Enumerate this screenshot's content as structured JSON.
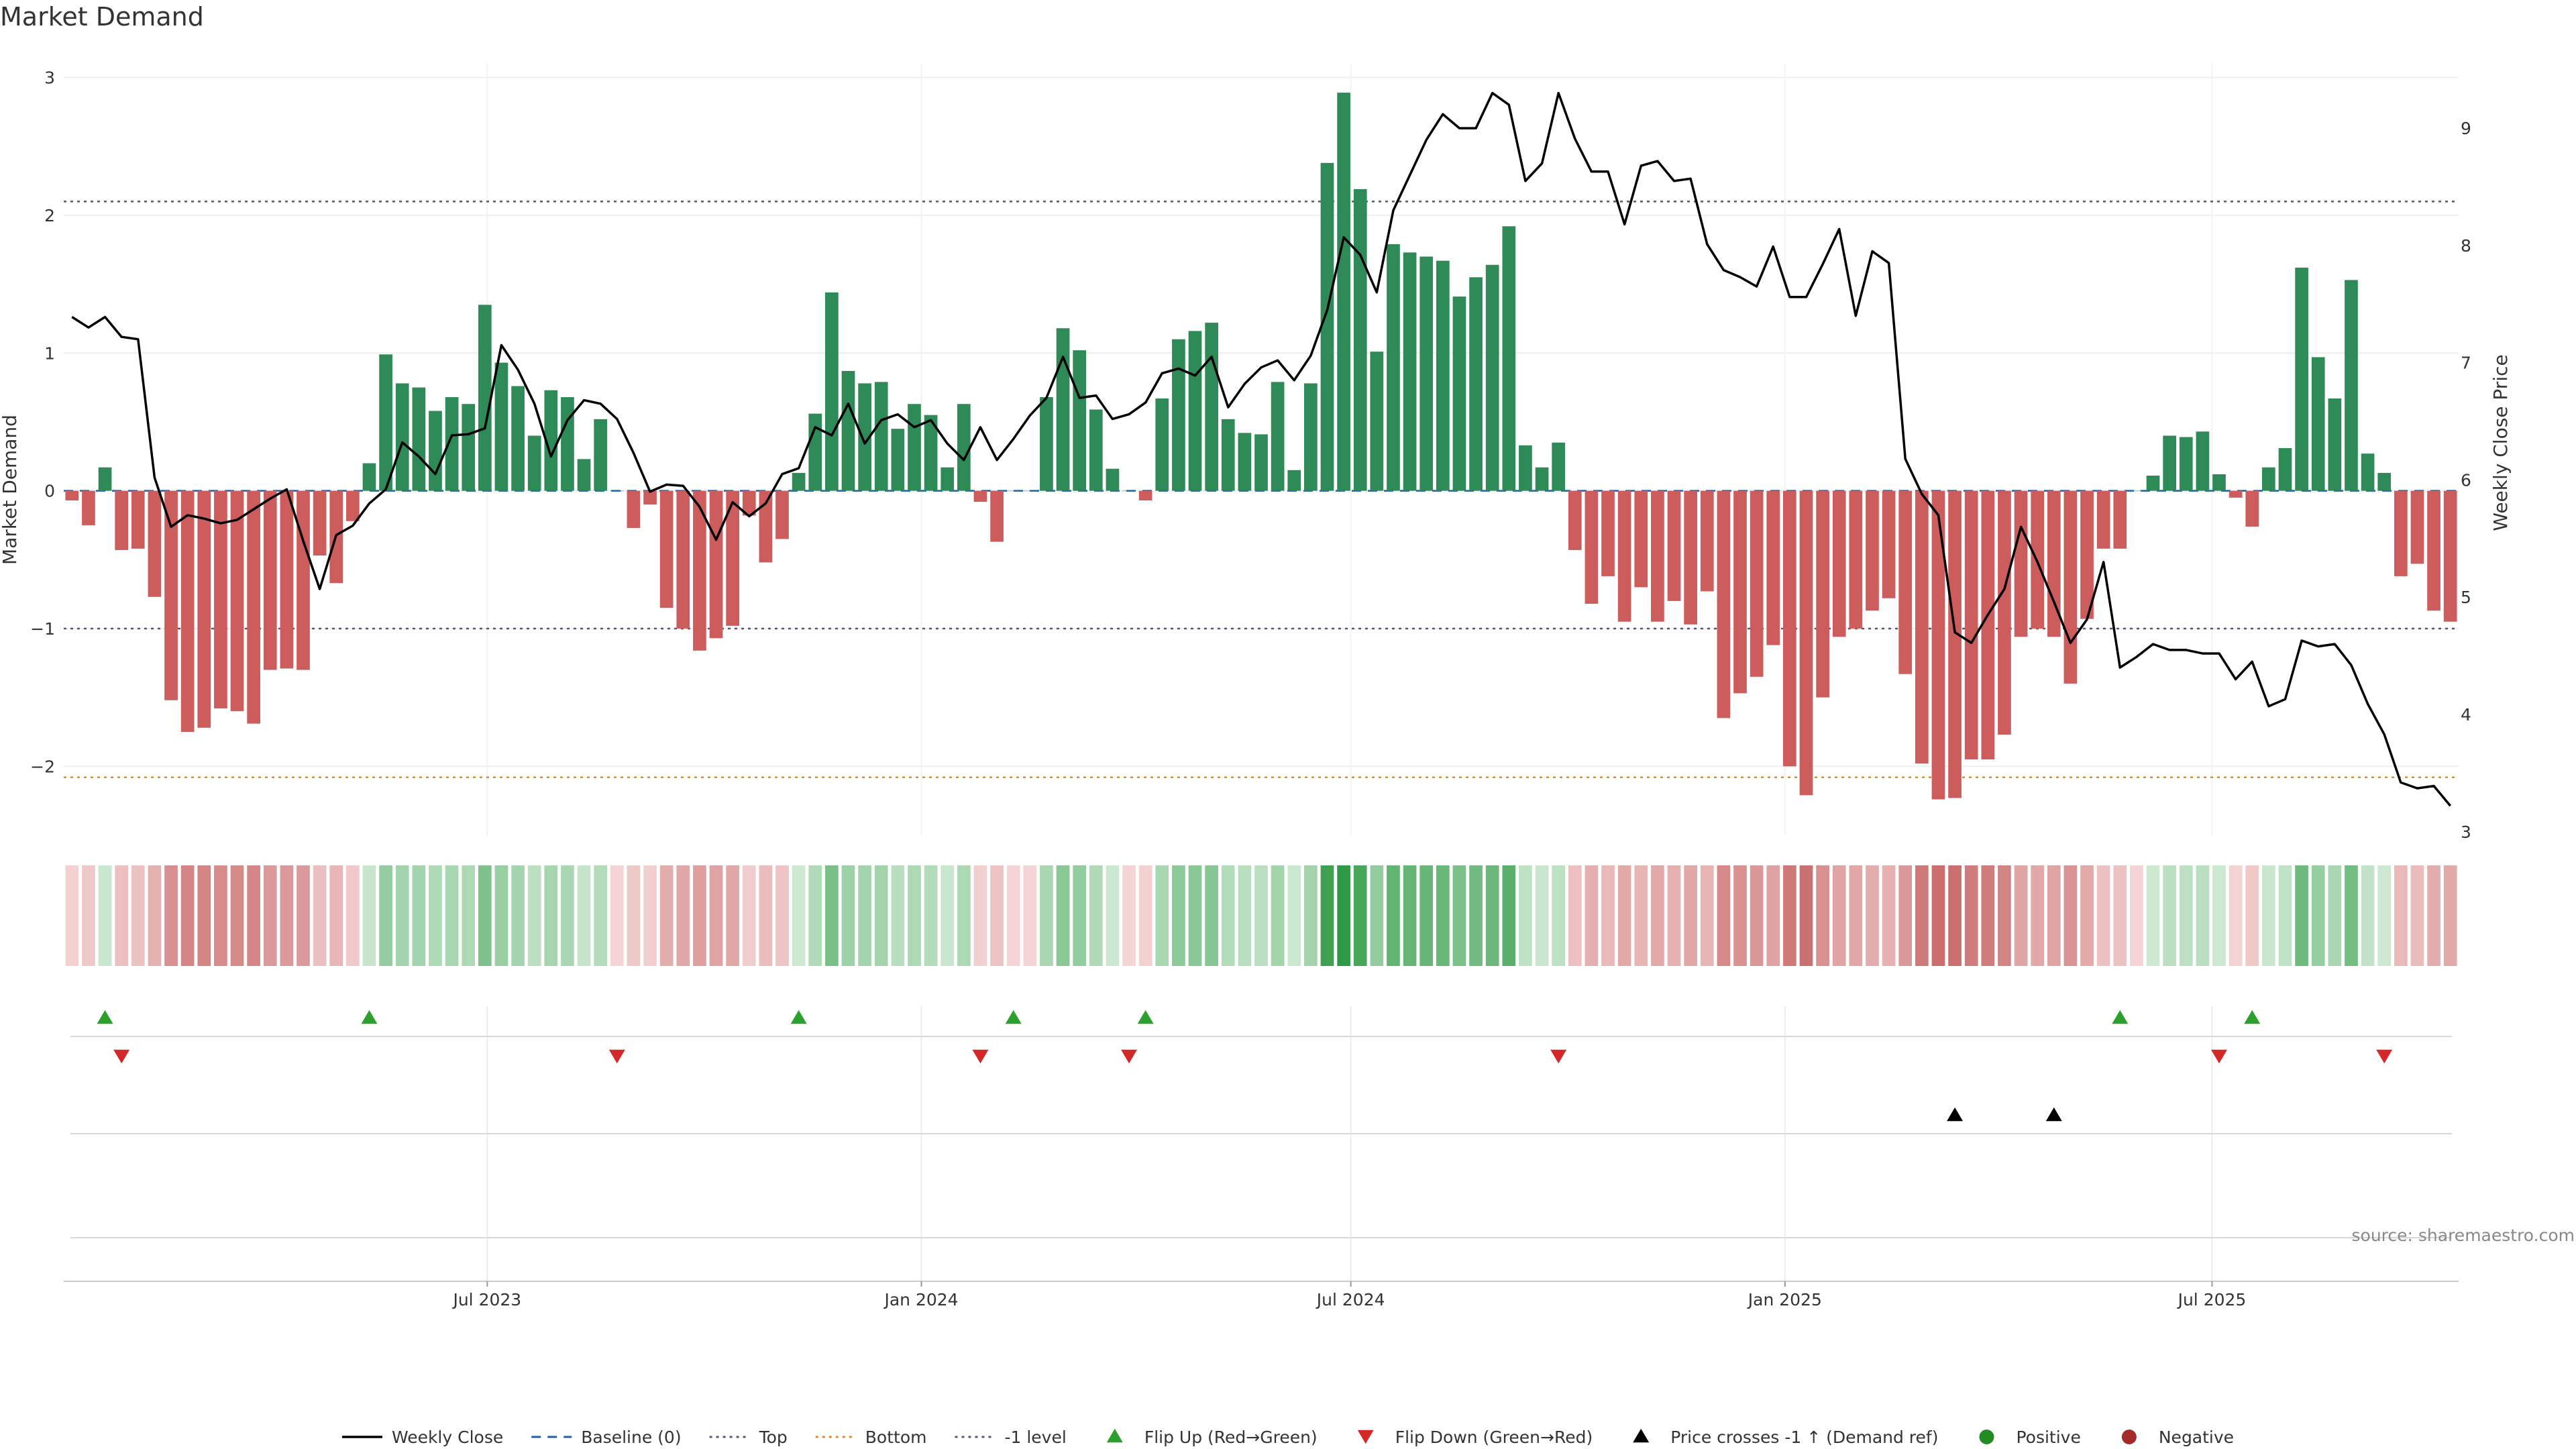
{
  "chart_data": {
    "type": "bar",
    "title": "Market Demand",
    "ylabel": "Market Demand",
    "y2label": "Weekly Close Price",
    "ylim": [
      -2.5,
      3.1
    ],
    "y2lim": [
      2.97,
      9.55
    ],
    "yticks": [
      3,
      2,
      1,
      0,
      -1,
      -2
    ],
    "y2ticks": [
      3,
      4,
      5,
      6,
      7,
      8,
      9
    ],
    "reference_lines": {
      "top": 2.1,
      "bottom": -2.08,
      "minus_one": -1.0,
      "baseline": 0
    },
    "x_start": "2023-01-06",
    "x_end": "2025-10-10",
    "x_ticks": [
      {
        "label": "Jul 2023",
        "date": "2023-07-01"
      },
      {
        "label": "Jan 2024",
        "date": "2024-01-01"
      },
      {
        "label": "Jul 2024",
        "date": "2024-07-01"
      },
      {
        "label": "Jan 2025",
        "date": "2025-01-01"
      },
      {
        "label": "Jul 2025",
        "date": "2025-07-01"
      }
    ],
    "colors": {
      "positive": "#2e8b57",
      "negative": "#cd5c5c",
      "line": "#000000",
      "flip_up": "#2ca02c",
      "flip_down": "#d62728",
      "crosses": "#000000",
      "ref_line": "#555577",
      "bottom_line": "#e08a2c",
      "baseline": "#1f5fa8"
    },
    "series": [
      {
        "name": "Market Demand",
        "values": [
          -0.07,
          -0.25,
          0.17,
          -0.43,
          -0.42,
          -0.77,
          -1.52,
          -1.75,
          -1.72,
          -1.58,
          -1.6,
          -1.69,
          -1.3,
          -1.29,
          -1.3,
          -0.47,
          -0.67,
          -0.22,
          0.2,
          0.99,
          0.78,
          0.75,
          0.58,
          0.68,
          0.63,
          1.35,
          0.93,
          0.76,
          0.4,
          0.73,
          0.68,
          0.23,
          0.52,
          0.0,
          -0.27,
          -0.1,
          -0.85,
          -1.0,
          -1.16,
          -1.07,
          -0.98,
          -0.18,
          -0.52,
          -0.35,
          0.13,
          0.56,
          1.44,
          0.87,
          0.78,
          0.79,
          0.45,
          0.63,
          0.55,
          0.17,
          0.63,
          -0.08,
          -0.37,
          0.0,
          0.0,
          0.68,
          1.18,
          1.02,
          0.59,
          0.16,
          0.0,
          -0.07,
          0.67,
          1.1,
          1.16,
          1.22,
          0.52,
          0.42,
          0.41,
          0.79,
          0.15,
          0.78,
          2.38,
          2.89,
          2.19,
          1.01,
          1.79,
          1.73,
          1.7,
          1.67,
          1.41,
          1.55,
          1.64,
          1.92,
          0.33,
          0.17,
          0.35,
          -0.43,
          -0.82,
          -0.62,
          -0.95,
          -0.7,
          -0.95,
          -0.8,
          -0.97,
          -0.73,
          -1.65,
          -1.47,
          -1.35,
          -1.12,
          -2.0,
          -2.21,
          -1.5,
          -1.06,
          -1.0,
          -0.87,
          -0.78,
          -1.33,
          -1.98,
          -2.24,
          -2.23,
          -1.95,
          -1.95,
          -1.77,
          -1.06,
          -1.0,
          -1.06,
          -1.4,
          -0.93,
          -0.42,
          -0.42,
          0.0,
          0.11,
          0.4,
          0.39,
          0.43,
          0.12,
          -0.05,
          -0.26,
          0.17,
          0.31,
          1.62,
          0.97,
          0.67,
          1.53,
          0.27,
          0.13,
          -0.62,
          -0.53,
          -0.87,
          -0.95
        ]
      },
      {
        "name": "Weekly Close",
        "values": [
          7.39,
          7.3,
          7.39,
          7.22,
          7.2,
          6.02,
          5.6,
          5.7,
          5.67,
          5.63,
          5.66,
          5.75,
          5.84,
          5.92,
          5.48,
          5.07,
          5.53,
          5.61,
          5.8,
          5.92,
          6.32,
          6.2,
          6.05,
          6.38,
          6.39,
          6.44,
          7.15,
          6.94,
          6.65,
          6.2,
          6.51,
          6.68,
          6.65,
          6.52,
          6.23,
          5.9,
          5.96,
          5.95,
          5.77,
          5.49,
          5.81,
          5.69,
          5.8,
          6.05,
          6.1,
          6.45,
          6.38,
          6.65,
          6.31,
          6.51,
          6.56,
          6.45,
          6.51,
          6.31,
          6.17,
          6.45,
          6.17,
          6.35,
          6.55,
          6.7,
          7.05,
          6.7,
          6.72,
          6.52,
          6.56,
          6.66,
          6.91,
          6.95,
          6.89,
          7.05,
          6.62,
          6.82,
          6.96,
          7.02,
          6.85,
          7.06,
          7.45,
          8.07,
          7.92,
          7.6,
          8.3,
          8.6,
          8.9,
          9.12,
          9.0,
          9.0,
          9.3,
          9.2,
          8.55,
          8.7,
          9.3,
          8.91,
          8.63,
          8.63,
          8.18,
          8.68,
          8.72,
          8.55,
          8.57,
          8.01,
          7.79,
          7.73,
          7.65,
          7.99,
          7.56,
          7.56,
          7.84,
          8.14,
          7.4,
          7.95,
          7.85,
          6.18,
          5.88,
          5.7,
          4.7,
          4.61,
          4.85,
          5.07,
          5.6,
          5.3,
          4.96,
          4.61,
          4.81,
          5.3,
          4.4,
          4.49,
          4.6,
          4.55,
          4.55,
          4.52,
          4.52,
          4.3,
          4.45,
          4.07,
          4.13,
          4.63,
          4.58,
          4.6,
          4.42,
          4.09,
          3.83,
          3.42,
          3.37,
          3.39,
          3.22
        ]
      }
    ],
    "heat_strip": {
      "name": "Demand intensity",
      "values_ref": "Market Demand"
    },
    "markers": {
      "flip_up": [
        2,
        18,
        44,
        57,
        65,
        124,
        132
      ],
      "flip_down": [
        3,
        33,
        55,
        64,
        90,
        130,
        140
      ],
      "price_crosses": [
        114,
        120
      ]
    },
    "legend": {
      "placement": "bottom-center",
      "items": [
        {
          "label": "Weekly Close",
          "kind": "line",
          "color": "#000000"
        },
        {
          "label": "Baseline (0)",
          "kind": "dash",
          "color": "#1f5fa8"
        },
        {
          "label": "Top",
          "kind": "dot",
          "color": "#555577"
        },
        {
          "label": "Bottom",
          "kind": "dot",
          "color": "#e08a2c"
        },
        {
          "label": "-1 level",
          "kind": "dot",
          "color": "#555577"
        },
        {
          "label": "Flip Up (Red→Green)",
          "kind": "tri-up",
          "color": "#2ca02c"
        },
        {
          "label": "Flip Down (Green→Red)",
          "kind": "tri-down",
          "color": "#d62728"
        },
        {
          "label": "Price crosses -1 ↑ (Demand ref)",
          "kind": "tri-up",
          "color": "#000000"
        },
        {
          "label": "Positive",
          "kind": "circle",
          "color": "#228b22"
        },
        {
          "label": "Negative",
          "kind": "circle",
          "color": "#a52a2a"
        }
      ]
    },
    "source": "source: sharemaestro.com",
    "grid": true
  }
}
